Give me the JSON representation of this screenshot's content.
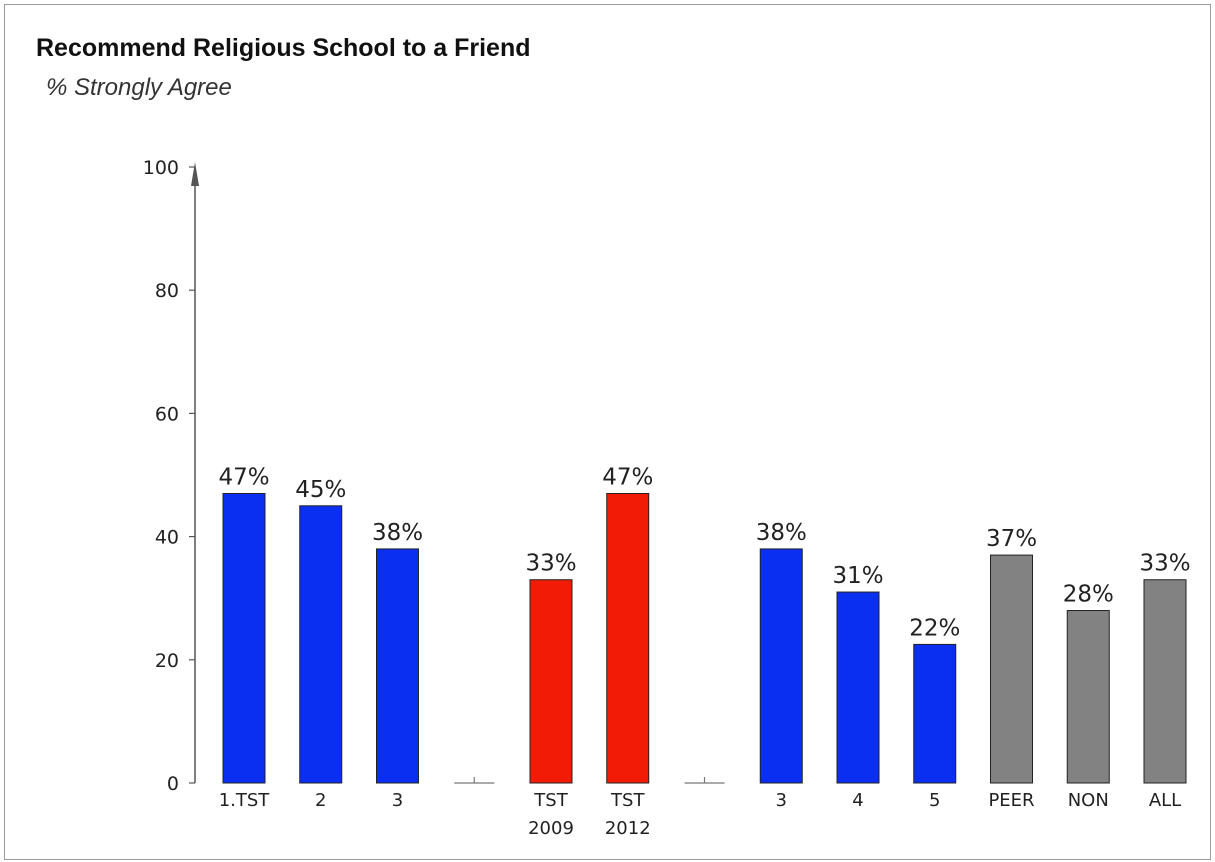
{
  "chart_data": {
    "type": "bar",
    "title": "Recommend Religious School to a Friend",
    "subtitle": "% Strongly Agree",
    "xlabel": "",
    "ylabel": "",
    "ylim": [
      0,
      100
    ],
    "yticks": [
      0,
      20,
      40,
      60,
      80,
      100
    ],
    "grid": false,
    "colors": {
      "blue": "#0a2ff0",
      "red": "#f21c06",
      "gray": "#828282"
    },
    "bars": [
      {
        "slot": 0,
        "label": [
          "1.TST"
        ],
        "value": 47,
        "data_label": "47%",
        "color": "blue"
      },
      {
        "slot": 1,
        "label": [
          "2"
        ],
        "value": 45,
        "data_label": "45%",
        "color": "blue"
      },
      {
        "slot": 2,
        "label": [
          "3"
        ],
        "value": 38,
        "data_label": "38%",
        "color": "blue"
      },
      {
        "slot": 4,
        "label": [
          "TST",
          "2009"
        ],
        "value": 33,
        "data_label": "33%",
        "color": "red"
      },
      {
        "slot": 5,
        "label": [
          "TST",
          "2012"
        ],
        "value": 47,
        "data_label": "47%",
        "color": "red"
      },
      {
        "slot": 7,
        "label": [
          "3"
        ],
        "value": 38,
        "data_label": "38%",
        "color": "blue"
      },
      {
        "slot": 8,
        "label": [
          "4"
        ],
        "value": 31,
        "data_label": "31%",
        "color": "blue"
      },
      {
        "slot": 9,
        "label": [
          "5"
        ],
        "value": 22.5,
        "data_label": "22%",
        "color": "blue"
      },
      {
        "slot": 10,
        "label": [
          "PEER"
        ],
        "value": 37,
        "data_label": "37%",
        "color": "gray"
      },
      {
        "slot": 11,
        "label": [
          "NON"
        ],
        "value": 28,
        "data_label": "28%",
        "color": "gray"
      },
      {
        "slot": 12,
        "label": [
          "ALL"
        ],
        "value": 33,
        "data_label": "33%",
        "color": "gray"
      }
    ],
    "spacer_slots": [
      3,
      6
    ]
  }
}
